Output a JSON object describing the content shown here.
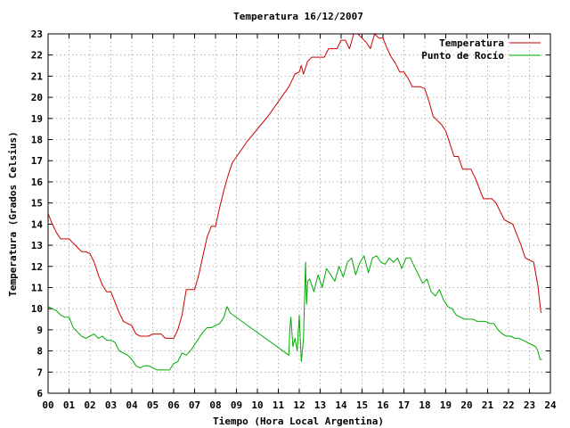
{
  "chart_data": {
    "type": "line",
    "title": "Temperatura 16/12/2007",
    "xlabel": "Tiempo (Hora Local Argentina)",
    "ylabel": "Temperatura (Grados Celsius)",
    "xlim": [
      0,
      24
    ],
    "ylim": [
      6,
      23
    ],
    "x_ticks": [
      "00",
      "01",
      "02",
      "03",
      "04",
      "05",
      "06",
      "07",
      "08",
      "09",
      "10",
      "11",
      "12",
      "13",
      "14",
      "15",
      "16",
      "17",
      "18",
      "19",
      "20",
      "21",
      "22",
      "23",
      "24"
    ],
    "y_ticks": [
      "6",
      "7",
      "8",
      "9",
      "10",
      "11",
      "12",
      "13",
      "14",
      "15",
      "16",
      "17",
      "18",
      "19",
      "20",
      "21",
      "22",
      "23"
    ],
    "grid": true,
    "legend_position": "top-right",
    "series": [
      {
        "name": "Temperatura",
        "color": "#cc0000",
        "x": [
          0.0,
          0.2,
          0.4,
          0.6,
          0.8,
          1.0,
          1.2,
          1.4,
          1.6,
          1.8,
          2.0,
          2.2,
          2.4,
          2.6,
          2.8,
          3.0,
          3.2,
          3.4,
          3.6,
          3.8,
          4.0,
          4.2,
          4.4,
          4.6,
          4.8,
          5.0,
          5.2,
          5.4,
          5.6,
          5.8,
          6.0,
          6.2,
          6.4,
          6.6,
          6.8,
          7.0,
          7.2,
          7.4,
          7.6,
          7.8,
          8.0,
          8.2,
          8.4,
          8.6,
          8.8,
          9.5,
          10.5,
          11.5,
          11.8,
          12.0,
          12.1,
          12.2,
          12.4,
          12.6,
          12.8,
          13.0,
          13.2,
          13.4,
          13.6,
          13.8,
          14.0,
          14.2,
          14.4,
          14.6,
          14.8,
          15.0,
          15.2,
          15.4,
          15.6,
          15.8,
          16.0,
          16.2,
          16.4,
          16.6,
          16.8,
          17.0,
          17.2,
          17.4,
          17.6,
          17.8,
          18.0,
          18.2,
          18.4,
          18.6,
          18.8,
          19.0,
          19.2,
          19.4,
          19.6,
          19.8,
          20.0,
          20.2,
          20.4,
          20.6,
          20.8,
          21.0,
          21.2,
          21.4,
          21.6,
          21.8,
          22.0,
          22.2,
          22.4,
          22.6,
          22.8,
          23.0,
          23.2,
          23.4,
          23.55
        ],
        "values": [
          14.5,
          14.0,
          13.6,
          13.3,
          13.3,
          13.3,
          13.1,
          12.9,
          12.7,
          12.7,
          12.6,
          12.2,
          11.6,
          11.1,
          10.8,
          10.8,
          10.3,
          9.8,
          9.4,
          9.3,
          9.2,
          8.8,
          8.7,
          8.7,
          8.7,
          8.8,
          8.8,
          8.8,
          8.6,
          8.6,
          8.6,
          9.0,
          9.7,
          10.9,
          10.9,
          10.9,
          11.6,
          12.5,
          13.4,
          13.9,
          13.9,
          14.8,
          15.6,
          16.3,
          16.9,
          17.9,
          19.1,
          20.5,
          21.1,
          21.2,
          21.5,
          21.1,
          21.7,
          21.9,
          21.9,
          21.9,
          21.9,
          22.3,
          22.3,
          22.3,
          22.7,
          22.7,
          22.3,
          23.0,
          23.0,
          22.8,
          22.6,
          22.3,
          23.0,
          22.8,
          22.8,
          22.3,
          21.9,
          21.6,
          21.2,
          21.2,
          20.9,
          20.5,
          20.5,
          20.5,
          20.4,
          19.8,
          19.1,
          18.9,
          18.7,
          18.4,
          17.8,
          17.2,
          17.2,
          16.6,
          16.6,
          16.6,
          16.2,
          15.7,
          15.2,
          15.2,
          15.2,
          15.0,
          14.6,
          14.2,
          14.1,
          14.0,
          13.5,
          13.0,
          12.4,
          12.3,
          12.2,
          11.1,
          9.8
        ]
      },
      {
        "name": "Punto de Rocío",
        "color": "#00aa00",
        "x": [
          0.0,
          0.2,
          0.4,
          0.6,
          0.8,
          1.0,
          1.2,
          1.4,
          1.6,
          1.8,
          2.0,
          2.2,
          2.4,
          2.6,
          2.8,
          3.0,
          3.2,
          3.4,
          3.6,
          3.8,
          4.0,
          4.2,
          4.4,
          4.6,
          4.8,
          5.0,
          5.2,
          5.4,
          5.6,
          5.8,
          6.0,
          6.2,
          6.4,
          6.6,
          6.8,
          7.0,
          7.2,
          7.4,
          7.6,
          7.8,
          8.0,
          8.2,
          8.4,
          8.55,
          8.7,
          11.5,
          11.55,
          11.6,
          11.7,
          11.8,
          11.9,
          12.0,
          12.1,
          12.2,
          12.3,
          12.35,
          12.4,
          12.5,
          12.7,
          12.9,
          13.1,
          13.3,
          13.5,
          13.7,
          13.9,
          14.1,
          14.3,
          14.5,
          14.7,
          14.9,
          15.1,
          15.3,
          15.5,
          15.7,
          15.9,
          16.1,
          16.3,
          16.5,
          16.7,
          16.9,
          17.1,
          17.3,
          17.5,
          17.7,
          17.9,
          18.1,
          18.3,
          18.5,
          18.7,
          18.9,
          19.1,
          19.3,
          19.5,
          19.7,
          19.9,
          20.1,
          20.3,
          20.5,
          20.7,
          20.9,
          21.1,
          21.3,
          21.5,
          21.7,
          21.9,
          22.1,
          22.3,
          22.5,
          22.7,
          22.9,
          23.1,
          23.3,
          23.4,
          23.5,
          23.6
        ],
        "values": [
          10.1,
          10.0,
          9.9,
          9.7,
          9.6,
          9.6,
          9.1,
          8.9,
          8.7,
          8.6,
          8.7,
          8.8,
          8.6,
          8.7,
          8.5,
          8.5,
          8.4,
          8.0,
          7.9,
          7.8,
          7.6,
          7.3,
          7.2,
          7.3,
          7.3,
          7.2,
          7.1,
          7.1,
          7.1,
          7.1,
          7.4,
          7.5,
          7.9,
          7.8,
          8.0,
          8.3,
          8.6,
          8.9,
          9.1,
          9.1,
          9.2,
          9.3,
          9.6,
          10.1,
          9.8,
          7.8,
          9.0,
          9.6,
          8.2,
          8.6,
          8.0,
          9.7,
          7.5,
          8.5,
          12.2,
          10.2,
          11.3,
          11.4,
          10.8,
          11.6,
          11.0,
          11.9,
          11.6,
          11.3,
          12.0,
          11.5,
          12.2,
          12.4,
          11.6,
          12.2,
          12.5,
          11.7,
          12.4,
          12.5,
          12.2,
          12.1,
          12.4,
          12.2,
          12.4,
          11.9,
          12.4,
          12.4,
          12.0,
          11.6,
          11.2,
          11.4,
          10.8,
          10.6,
          10.9,
          10.4,
          10.1,
          10.0,
          9.7,
          9.6,
          9.5,
          9.5,
          9.5,
          9.4,
          9.4,
          9.4,
          9.3,
          9.3,
          9.0,
          8.8,
          8.7,
          8.7,
          8.6,
          8.6,
          8.5,
          8.4,
          8.3,
          8.2,
          8.0,
          7.6,
          7.6
        ]
      }
    ]
  }
}
